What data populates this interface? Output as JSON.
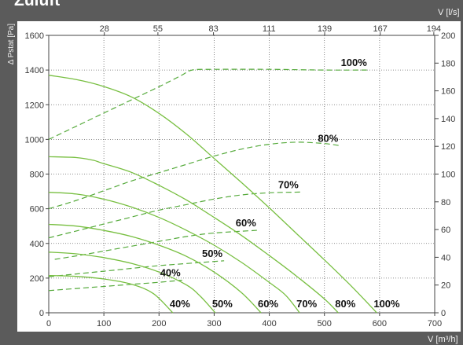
{
  "chart_data": {
    "type": "line",
    "title": "Zuluft",
    "x": {
      "label": "V [m³/h]",
      "range": [
        0,
        700
      ],
      "ticks": [
        0,
        100,
        200,
        300,
        400,
        500,
        600,
        700
      ]
    },
    "x2": {
      "label": "V [l/s]",
      "ticks": [
        28,
        55,
        83,
        111,
        139,
        167,
        194
      ]
    },
    "y": {
      "label": "Δ Pstat [Pa]",
      "range": [
        0,
        1600
      ],
      "ticks": [
        0,
        200,
        400,
        600,
        800,
        1000,
        1200,
        1400,
        1600
      ]
    },
    "y2": {
      "range": [
        0,
        200
      ],
      "ticks": [
        0,
        20,
        40,
        60,
        80,
        100,
        120,
        140,
        160,
        180,
        200
      ]
    },
    "grid": true,
    "series": [
      {
        "name": "100%",
        "points": [
          [
            0,
            1370
          ],
          [
            50,
            1345
          ],
          [
            100,
            1305
          ],
          [
            150,
            1245
          ],
          [
            200,
            1150
          ],
          [
            250,
            1030
          ],
          [
            300,
            890
          ],
          [
            350,
            750
          ],
          [
            400,
            605
          ],
          [
            450,
            455
          ],
          [
            500,
            305
          ],
          [
            550,
            150
          ],
          [
            595,
            0
          ]
        ]
      },
      {
        "name": "80%",
        "points": [
          [
            0,
            900
          ],
          [
            50,
            895
          ],
          [
            80,
            880
          ],
          [
            100,
            860
          ],
          [
            150,
            810
          ],
          [
            200,
            735
          ],
          [
            250,
            650
          ],
          [
            300,
            550
          ],
          [
            350,
            445
          ],
          [
            400,
            330
          ],
          [
            450,
            210
          ],
          [
            500,
            80
          ],
          [
            525,
            0
          ]
        ]
      },
      {
        "name": "70%",
        "points": [
          [
            0,
            695
          ],
          [
            50,
            685
          ],
          [
            100,
            655
          ],
          [
            150,
            610
          ],
          [
            200,
            550
          ],
          [
            250,
            475
          ],
          [
            300,
            390
          ],
          [
            350,
            290
          ],
          [
            400,
            175
          ],
          [
            430,
            100
          ],
          [
            455,
            0
          ]
        ]
      },
      {
        "name": "60%",
        "points": [
          [
            0,
            510
          ],
          [
            50,
            500
          ],
          [
            100,
            475
          ],
          [
            150,
            440
          ],
          [
            200,
            390
          ],
          [
            250,
            325
          ],
          [
            300,
            235
          ],
          [
            350,
            115
          ],
          [
            385,
            0
          ]
        ]
      },
      {
        "name": "50%",
        "points": [
          [
            0,
            350
          ],
          [
            50,
            340
          ],
          [
            100,
            318
          ],
          [
            150,
            285
          ],
          [
            200,
            235
          ],
          [
            250,
            160
          ],
          [
            275,
            95
          ],
          [
            302,
            0
          ]
        ]
      },
      {
        "name": "40%",
        "points": [
          [
            0,
            215
          ],
          [
            50,
            210
          ],
          [
            100,
            195
          ],
          [
            150,
            165
          ],
          [
            190,
            110
          ],
          [
            225,
            0
          ]
        ]
      }
    ],
    "series_y2": [
      {
        "name": "100%",
        "points": [
          [
            0,
            125
          ],
          [
            50,
            134.5
          ],
          [
            100,
            144
          ],
          [
            150,
            153.5
          ],
          [
            200,
            163
          ],
          [
            240,
            171
          ],
          [
            260,
            175
          ],
          [
            300,
            175.5
          ],
          [
            400,
            175.5
          ],
          [
            500,
            175
          ],
          [
            580,
            175
          ]
        ]
      },
      {
        "name": "80%",
        "points": [
          [
            0,
            75
          ],
          [
            50,
            81
          ],
          [
            100,
            88
          ],
          [
            150,
            95
          ],
          [
            200,
            101
          ],
          [
            250,
            107
          ],
          [
            300,
            113
          ],
          [
            350,
            118
          ],
          [
            400,
            121.5
          ],
          [
            450,
            123
          ],
          [
            500,
            122
          ],
          [
            528,
            120.5
          ]
        ]
      },
      {
        "name": "70%",
        "points": [
          [
            0,
            54
          ],
          [
            50,
            59
          ],
          [
            100,
            64
          ],
          [
            150,
            69
          ],
          [
            200,
            74
          ],
          [
            250,
            78
          ],
          [
            300,
            82
          ],
          [
            350,
            85
          ],
          [
            400,
            86.5
          ],
          [
            456,
            87
          ]
        ]
      },
      {
        "name": "60%",
        "points": [
          [
            11,
            38.5
          ],
          [
            50,
            41
          ],
          [
            100,
            44.5
          ],
          [
            150,
            48
          ],
          [
            200,
            51.5
          ],
          [
            250,
            55
          ],
          [
            300,
            57.5
          ],
          [
            379,
            59.5
          ]
        ]
      },
      {
        "name": "50%",
        "points": [
          [
            0,
            26
          ],
          [
            50,
            28
          ],
          [
            100,
            30
          ],
          [
            150,
            32
          ],
          [
            200,
            34
          ],
          [
            250,
            35.5
          ],
          [
            318,
            37.5
          ]
        ]
      },
      {
        "name": "40%",
        "points": [
          [
            0,
            16
          ],
          [
            50,
            17.5
          ],
          [
            100,
            19
          ],
          [
            150,
            20.5
          ],
          [
            200,
            22
          ],
          [
            242,
            23.5
          ]
        ]
      }
    ],
    "colors": {
      "background": "#5b5b5b",
      "plot_area": "#ffffff",
      "series": "#78bf41",
      "series_y2": "#55aa3b",
      "frame": "#444444"
    }
  }
}
